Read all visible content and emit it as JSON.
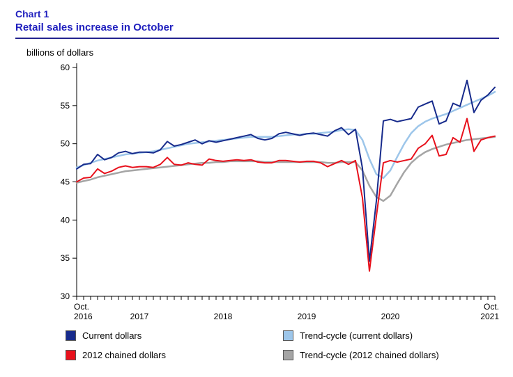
{
  "header": {
    "chart_label": "Chart 1",
    "title": "Retail sales increase in October"
  },
  "unit_label": "billions of dollars",
  "colors": {
    "title_text": "#1f1fbe",
    "title_rule": "#23238e",
    "axis": "#000000"
  },
  "chart_data": {
    "type": "line",
    "title": "Retail sales increase in October",
    "ylabel": "billions of dollars",
    "ylim": [
      30,
      60
    ],
    "yticks": [
      30,
      35,
      40,
      45,
      50,
      55,
      60
    ],
    "months_count": 61,
    "x_axis": {
      "start": {
        "line1": "Oct.",
        "line2": "2016"
      },
      "end": {
        "line1": "Oct.",
        "line2": "2021"
      },
      "year_labels": [
        {
          "label": "2017",
          "month_index": 9
        },
        {
          "label": "2018",
          "month_index": 21
        },
        {
          "label": "2019",
          "month_index": 33
        },
        {
          "label": "2020",
          "month_index": 45
        }
      ]
    },
    "legend_position": "bottom",
    "grid": false,
    "series": [
      {
        "name": "Current dollars",
        "color": "#172b8c",
        "stroke_width": 2,
        "values": [
          46.7,
          47.3,
          47.4,
          48.6,
          47.9,
          48.2,
          48.8,
          49.0,
          48.7,
          48.9,
          48.9,
          48.8,
          49.2,
          50.3,
          49.7,
          49.9,
          50.2,
          50.5,
          50.0,
          50.4,
          50.2,
          50.4,
          50.6,
          50.8,
          51.0,
          51.2,
          50.7,
          50.5,
          50.7,
          51.3,
          51.5,
          51.3,
          51.1,
          51.3,
          51.4,
          51.2,
          51.0,
          51.7,
          52.1,
          51.2,
          51.9,
          46.8,
          34.6,
          42.5,
          53.0,
          53.2,
          52.9,
          53.1,
          53.3,
          54.8,
          55.2,
          55.6,
          52.6,
          53.0,
          55.3,
          54.9,
          58.3,
          54.1,
          55.7,
          56.4,
          57.4
        ]
      },
      {
        "name": "Trend-cycle (current dollars)",
        "color": "#9dc6ea",
        "stroke_width": 2.5,
        "values": [
          46.9,
          47.2,
          47.5,
          47.8,
          48.0,
          48.2,
          48.4,
          48.6,
          48.7,
          48.8,
          48.9,
          49.0,
          49.2,
          49.4,
          49.6,
          49.8,
          50.0,
          50.1,
          50.2,
          50.3,
          50.4,
          50.5,
          50.6,
          50.7,
          50.8,
          50.9,
          50.9,
          50.9,
          50.9,
          51.0,
          51.1,
          51.2,
          51.2,
          51.3,
          51.3,
          51.4,
          51.5,
          51.6,
          51.8,
          51.9,
          51.8,
          50.5,
          48.0,
          46.0,
          45.5,
          46.5,
          48.3,
          50.0,
          51.4,
          52.3,
          52.9,
          53.3,
          53.6,
          53.9,
          54.3,
          54.7,
          55.1,
          55.5,
          55.9,
          56.3,
          56.8
        ]
      },
      {
        "name": "2012 chained dollars",
        "color": "#e8111c",
        "stroke_width": 2,
        "values": [
          45.0,
          45.5,
          45.6,
          46.7,
          46.1,
          46.4,
          46.9,
          47.1,
          46.9,
          47.0,
          47.0,
          46.9,
          47.3,
          48.2,
          47.3,
          47.2,
          47.5,
          47.3,
          47.2,
          48.0,
          47.8,
          47.7,
          47.8,
          47.9,
          47.8,
          47.9,
          47.6,
          47.5,
          47.5,
          47.8,
          47.8,
          47.7,
          47.6,
          47.7,
          47.7,
          47.5,
          47.0,
          47.4,
          47.8,
          47.3,
          47.8,
          42.9,
          33.3,
          40.5,
          47.5,
          47.8,
          47.6,
          47.8,
          48.0,
          49.4,
          50.0,
          51.1,
          48.4,
          48.6,
          50.8,
          50.2,
          53.3,
          49.0,
          50.5,
          50.8,
          51.0
        ]
      },
      {
        "name": "Trend-cycle (2012 chained dollars)",
        "color": "#a5a5a5",
        "stroke_width": 2.5,
        "values": [
          44.9,
          45.1,
          45.3,
          45.6,
          45.8,
          46.0,
          46.2,
          46.4,
          46.5,
          46.6,
          46.7,
          46.8,
          46.9,
          47.0,
          47.1,
          47.2,
          47.3,
          47.4,
          47.5,
          47.5,
          47.6,
          47.6,
          47.7,
          47.7,
          47.7,
          47.7,
          47.7,
          47.6,
          47.6,
          47.6,
          47.6,
          47.6,
          47.6,
          47.6,
          47.6,
          47.6,
          47.5,
          47.5,
          47.6,
          47.6,
          47.6,
          46.5,
          44.5,
          43.0,
          42.5,
          43.2,
          44.8,
          46.3,
          47.5,
          48.3,
          48.9,
          49.3,
          49.6,
          49.9,
          50.1,
          50.3,
          50.5,
          50.6,
          50.7,
          50.8,
          50.9
        ]
      }
    ],
    "draw_order": [
      1,
      3,
      0,
      2
    ]
  }
}
